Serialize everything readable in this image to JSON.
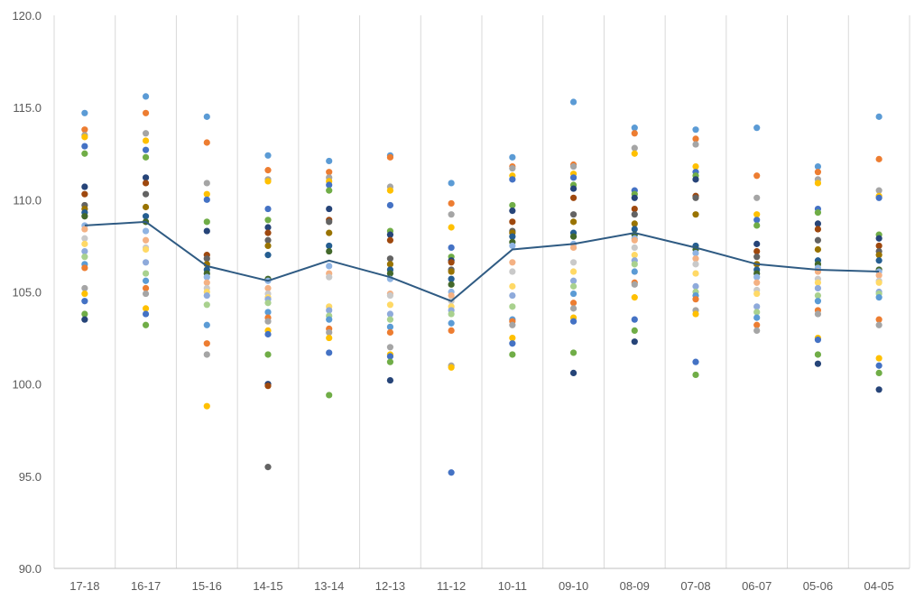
{
  "chart_data": {
    "type": "scatter",
    "title": "",
    "xlabel": "",
    "ylabel": "",
    "categories": [
      "17-18",
      "16-17",
      "15-16",
      "14-15",
      "13-14",
      "12-13",
      "11-12",
      "10-11",
      "09-10",
      "08-09",
      "07-08",
      "06-07",
      "05-06",
      "04-05"
    ],
    "ylim": [
      90,
      120
    ],
    "yticks": [
      90,
      95,
      100,
      105,
      110,
      115,
      120
    ],
    "ytick_labels": [
      "90.0",
      "95.0",
      "100.0",
      "105.0",
      "110.0",
      "115.0",
      "120.0"
    ],
    "grid": {
      "vertical": true,
      "horizontal": false
    },
    "colors": {
      "line": "#2f5b83",
      "gridline": "#d9d9d9",
      "axis": "#bfbfbf",
      "dot_palette": [
        "#5b9bd5",
        "#ed7d31",
        "#a5a5a5",
        "#ffc000",
        "#4472c4",
        "#70ad47",
        "#264478",
        "#9e480e",
        "#636363",
        "#997300",
        "#255e91",
        "#43682b",
        "#8fb4e3",
        "#f4b183",
        "#c9c9c9",
        "#ffd966",
        "#8eaadb",
        "#a9d18e"
      ]
    },
    "mean_line": {
      "values": [
        108.6,
        108.8,
        106.4,
        105.6,
        106.7,
        105.8,
        104.5,
        107.3,
        107.6,
        108.2,
        107.4,
        106.5,
        106.2,
        106.1
      ]
    },
    "points": [
      [
        114.7,
        113.8,
        113.5,
        113.4,
        112.9,
        112.5,
        110.7,
        110.3,
        109.7,
        109.5,
        109.3,
        109.1,
        108.6,
        108.4,
        107.9,
        107.6,
        107.2,
        106.9,
        106.5,
        106.3,
        105.2,
        104.9,
        104.5,
        103.8,
        103.5
      ],
      [
        115.6,
        114.7,
        113.6,
        113.2,
        112.7,
        112.3,
        111.2,
        110.9,
        110.3,
        109.6,
        109.1,
        108.8,
        108.3,
        107.8,
        107.4,
        107.3,
        106.6,
        106.0,
        105.6,
        105.2,
        104.9,
        104.1,
        103.8,
        103.2
      ],
      [
        114.5,
        113.1,
        110.9,
        110.3,
        110.0,
        108.8,
        108.3,
        107.0,
        106.8,
        106.5,
        106.2,
        106.0,
        105.8,
        105.5,
        105.2,
        105.0,
        104.8,
        104.3,
        103.2,
        102.2,
        101.6,
        98.8
      ],
      [
        112.4,
        111.6,
        111.1,
        111.0,
        109.5,
        108.9,
        108.5,
        108.2,
        107.8,
        107.5,
        107.0,
        105.7,
        105.6,
        105.2,
        104.9,
        104.7,
        104.6,
        104.4,
        103.9,
        103.6,
        103.4,
        102.9,
        102.7,
        101.6,
        100.0,
        99.9,
        95.5
      ],
      [
        112.1,
        111.5,
        111.2,
        111.0,
        110.8,
        110.5,
        109.5,
        108.9,
        108.8,
        108.2,
        107.5,
        107.2,
        106.4,
        106.0,
        105.8,
        104.2,
        104.0,
        103.7,
        103.5,
        103.0,
        102.8,
        102.5,
        101.7,
        99.4
      ],
      [
        112.4,
        112.3,
        110.7,
        110.5,
        109.7,
        108.3,
        108.1,
        107.8,
        106.8,
        106.5,
        106.2,
        106.0,
        105.7,
        104.9,
        104.8,
        104.3,
        103.8,
        103.5,
        103.1,
        102.8,
        102.0,
        101.6,
        101.5,
        101.2,
        100.2
      ],
      [
        110.9,
        109.8,
        109.2,
        108.5,
        107.4,
        106.9,
        106.7,
        106.6,
        106.2,
        106.1,
        105.7,
        105.4,
        105.0,
        104.8,
        104.5,
        104.2,
        104.0,
        103.8,
        103.3,
        102.9,
        101.0,
        100.9,
        95.2
      ],
      [
        112.3,
        111.8,
        111.7,
        111.3,
        111.1,
        109.7,
        109.4,
        108.8,
        108.3,
        108.2,
        108.0,
        107.7,
        107.5,
        106.6,
        106.1,
        105.3,
        104.8,
        104.2,
        103.5,
        103.4,
        103.2,
        102.5,
        102.2,
        101.6
      ],
      [
        115.3,
        111.9,
        111.8,
        111.4,
        111.2,
        110.8,
        110.6,
        110.1,
        109.2,
        108.8,
        108.2,
        108.0,
        107.6,
        107.4,
        106.6,
        106.1,
        105.6,
        105.3,
        104.9,
        104.4,
        104.1,
        103.6,
        103.4,
        101.7,
        100.6
      ],
      [
        113.9,
        113.6,
        112.8,
        112.5,
        110.5,
        110.3,
        110.1,
        109.5,
        109.2,
        108.7,
        108.4,
        108.1,
        107.9,
        107.8,
        107.4,
        107.0,
        106.7,
        106.5,
        106.1,
        105.5,
        105.4,
        104.7,
        103.5,
        102.9,
        102.3
      ],
      [
        113.8,
        113.3,
        113.0,
        111.8,
        111.5,
        111.3,
        111.1,
        110.2,
        110.1,
        109.2,
        107.5,
        107.3,
        107.1,
        106.8,
        106.5,
        106.0,
        105.3,
        105.0,
        104.8,
        104.6,
        104.0,
        103.8,
        101.2,
        100.5
      ],
      [
        113.9,
        111.3,
        110.1,
        109.2,
        108.9,
        108.6,
        107.6,
        107.2,
        106.9,
        106.5,
        106.2,
        106.0,
        105.8,
        105.5,
        105.1,
        104.9,
        104.2,
        103.9,
        103.6,
        103.2,
        102.9
      ],
      [
        111.8,
        111.5,
        111.1,
        110.9,
        109.5,
        109.3,
        108.7,
        108.4,
        107.8,
        107.3,
        106.7,
        106.5,
        106.3,
        106.1,
        105.7,
        105.5,
        105.2,
        104.8,
        104.5,
        104.0,
        103.8,
        102.5,
        102.4,
        101.6,
        101.1
      ],
      [
        114.5,
        112.2,
        110.5,
        110.2,
        110.1,
        108.1,
        107.9,
        107.5,
        107.2,
        107.0,
        106.7,
        106.2,
        106.1,
        105.9,
        105.6,
        105.5,
        105.0,
        104.9,
        104.7,
        103.5,
        103.2,
        101.4,
        101.0,
        100.6,
        99.7
      ]
    ]
  }
}
